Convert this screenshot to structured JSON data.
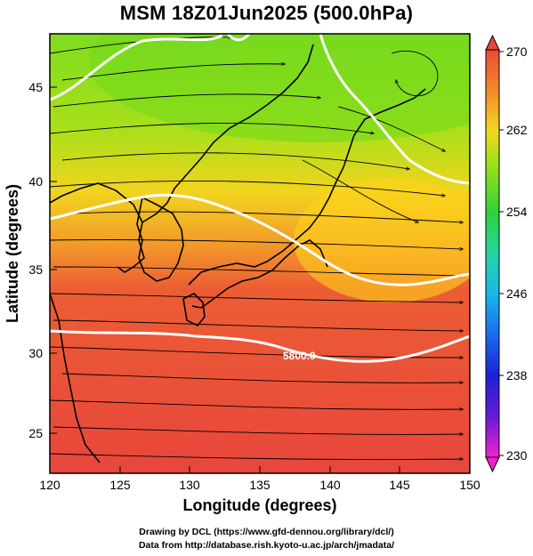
{
  "title": "MSM 18Z01Jun2025 (500.0hPa)",
  "chart_data": {
    "type": "map",
    "x_axis": {
      "label": "Longitude (degrees)",
      "range": [
        120,
        150
      ],
      "ticks": [
        "120",
        "125",
        "130",
        "135",
        "140",
        "145",
        "150"
      ]
    },
    "y_axis": {
      "label": "Latitude  (degrees)",
      "range": [
        22.4,
        47.6
      ],
      "ticks": [
        "25",
        "30",
        "35",
        "40",
        "45"
      ]
    },
    "colorbar": {
      "range": [
        230,
        270
      ],
      "ticks": [
        "230",
        "238",
        "246",
        "254",
        "262",
        "270"
      ]
    },
    "contour_label": "5800.0",
    "colors": {
      "warm": "#e8473a",
      "mid": "#ffd21a",
      "cool": "#5fd01a",
      "contour": "#ffffff",
      "streamline": "#000000"
    }
  },
  "credits": {
    "line1": "Drawing by DCL (https://www.gfd-dennou.org/library/dcl/)",
    "line2": "Data from http://database.rish.kyoto-u.ac.jp/arch/jmadata/"
  }
}
